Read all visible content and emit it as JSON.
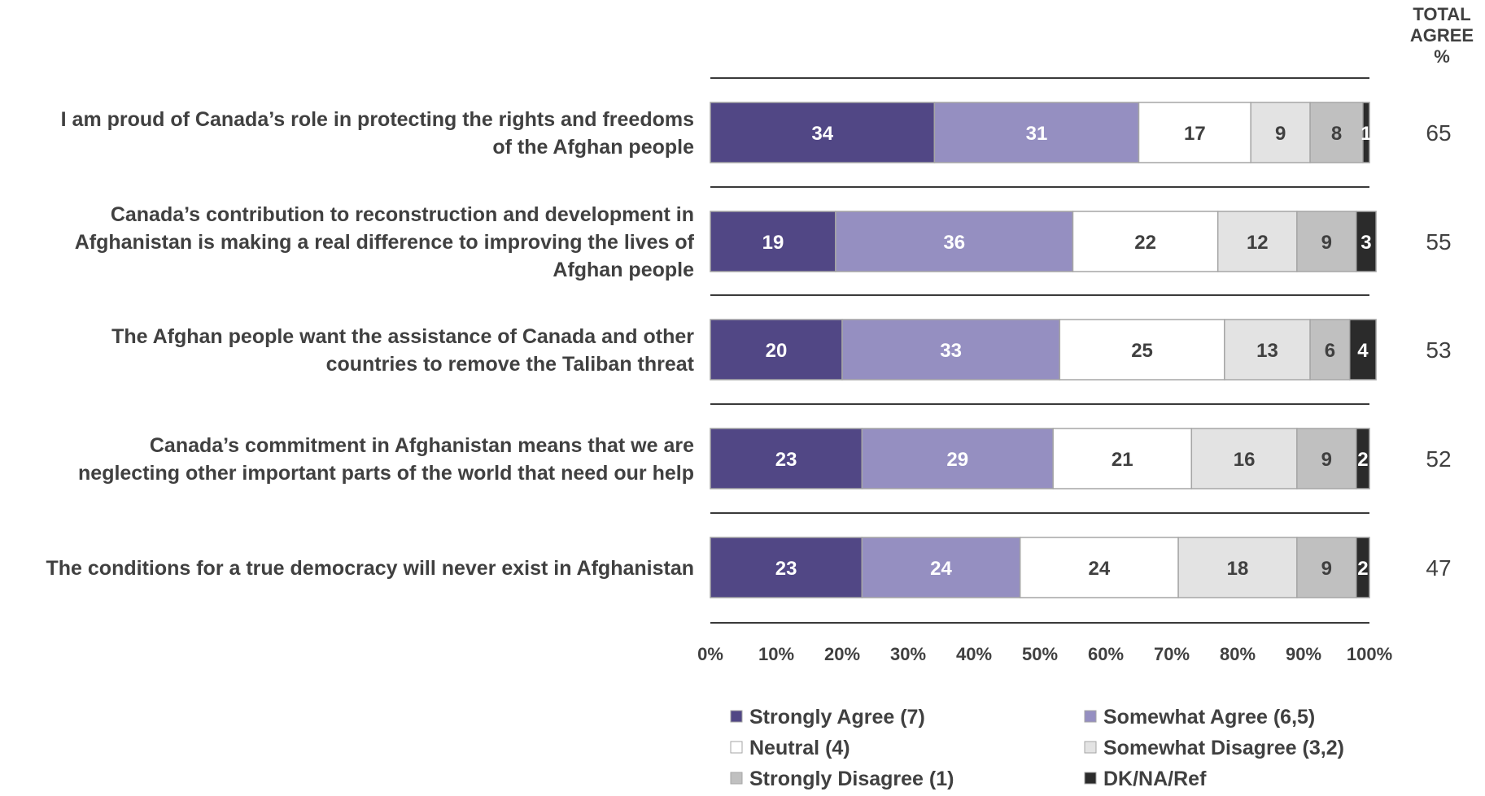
{
  "chart_data": {
    "type": "bar",
    "orientation": "horizontal",
    "stacked": true,
    "total_header": [
      "TOTAL",
      "AGREE",
      "%"
    ],
    "categories": [
      [
        "I am proud of Canada’s role in protecting the rights and freedoms",
        "of the Afghan people"
      ],
      [
        "Canada’s contribution to reconstruction and development in",
        "Afghanistan is making a real difference to improving the lives of",
        "Afghan people"
      ],
      [
        "The Afghan people want the assistance of Canada and other",
        "countries to remove the Taliban threat"
      ],
      [
        "Canada’s commitment in Afghanistan means that we are",
        "neglecting other important parts of the world that need our help"
      ],
      [
        "The conditions for a true democracy will never exist in Afghanistan"
      ]
    ],
    "series": [
      {
        "name": "Strongly Agree (7)",
        "color": "#514785",
        "label_color": "#ffffff",
        "values": [
          34,
          19,
          20,
          23,
          23
        ]
      },
      {
        "name": "Somewhat Agree (6,5)",
        "color": "#958fc1",
        "label_color": "#ffffff",
        "values": [
          31,
          36,
          33,
          29,
          24
        ]
      },
      {
        "name": "Neutral (4)",
        "color": "#ffffff",
        "label_color": "#404040",
        "values": [
          17,
          22,
          25,
          21,
          24
        ]
      },
      {
        "name": "Somewhat Disagree (3,2)",
        "color": "#e3e3e3",
        "label_color": "#404040",
        "values": [
          9,
          12,
          13,
          16,
          18
        ]
      },
      {
        "name": "Strongly Disagree (1)",
        "color": "#c0c0c0",
        "label_color": "#404040",
        "values": [
          8,
          9,
          6,
          9,
          9
        ]
      },
      {
        "name": "DK/NA/Ref",
        "color": "#2b2b2b",
        "label_color": "#ffffff",
        "values": [
          1,
          3,
          4,
          2,
          2
        ]
      }
    ],
    "total_agree": [
      65,
      55,
      53,
      52,
      47
    ],
    "x_ticks": [
      "0%",
      "10%",
      "20%",
      "30%",
      "40%",
      "50%",
      "60%",
      "70%",
      "80%",
      "90%",
      "100%"
    ],
    "xlim": [
      0,
      100
    ],
    "legend_position": "bottom",
    "grid": false
  }
}
